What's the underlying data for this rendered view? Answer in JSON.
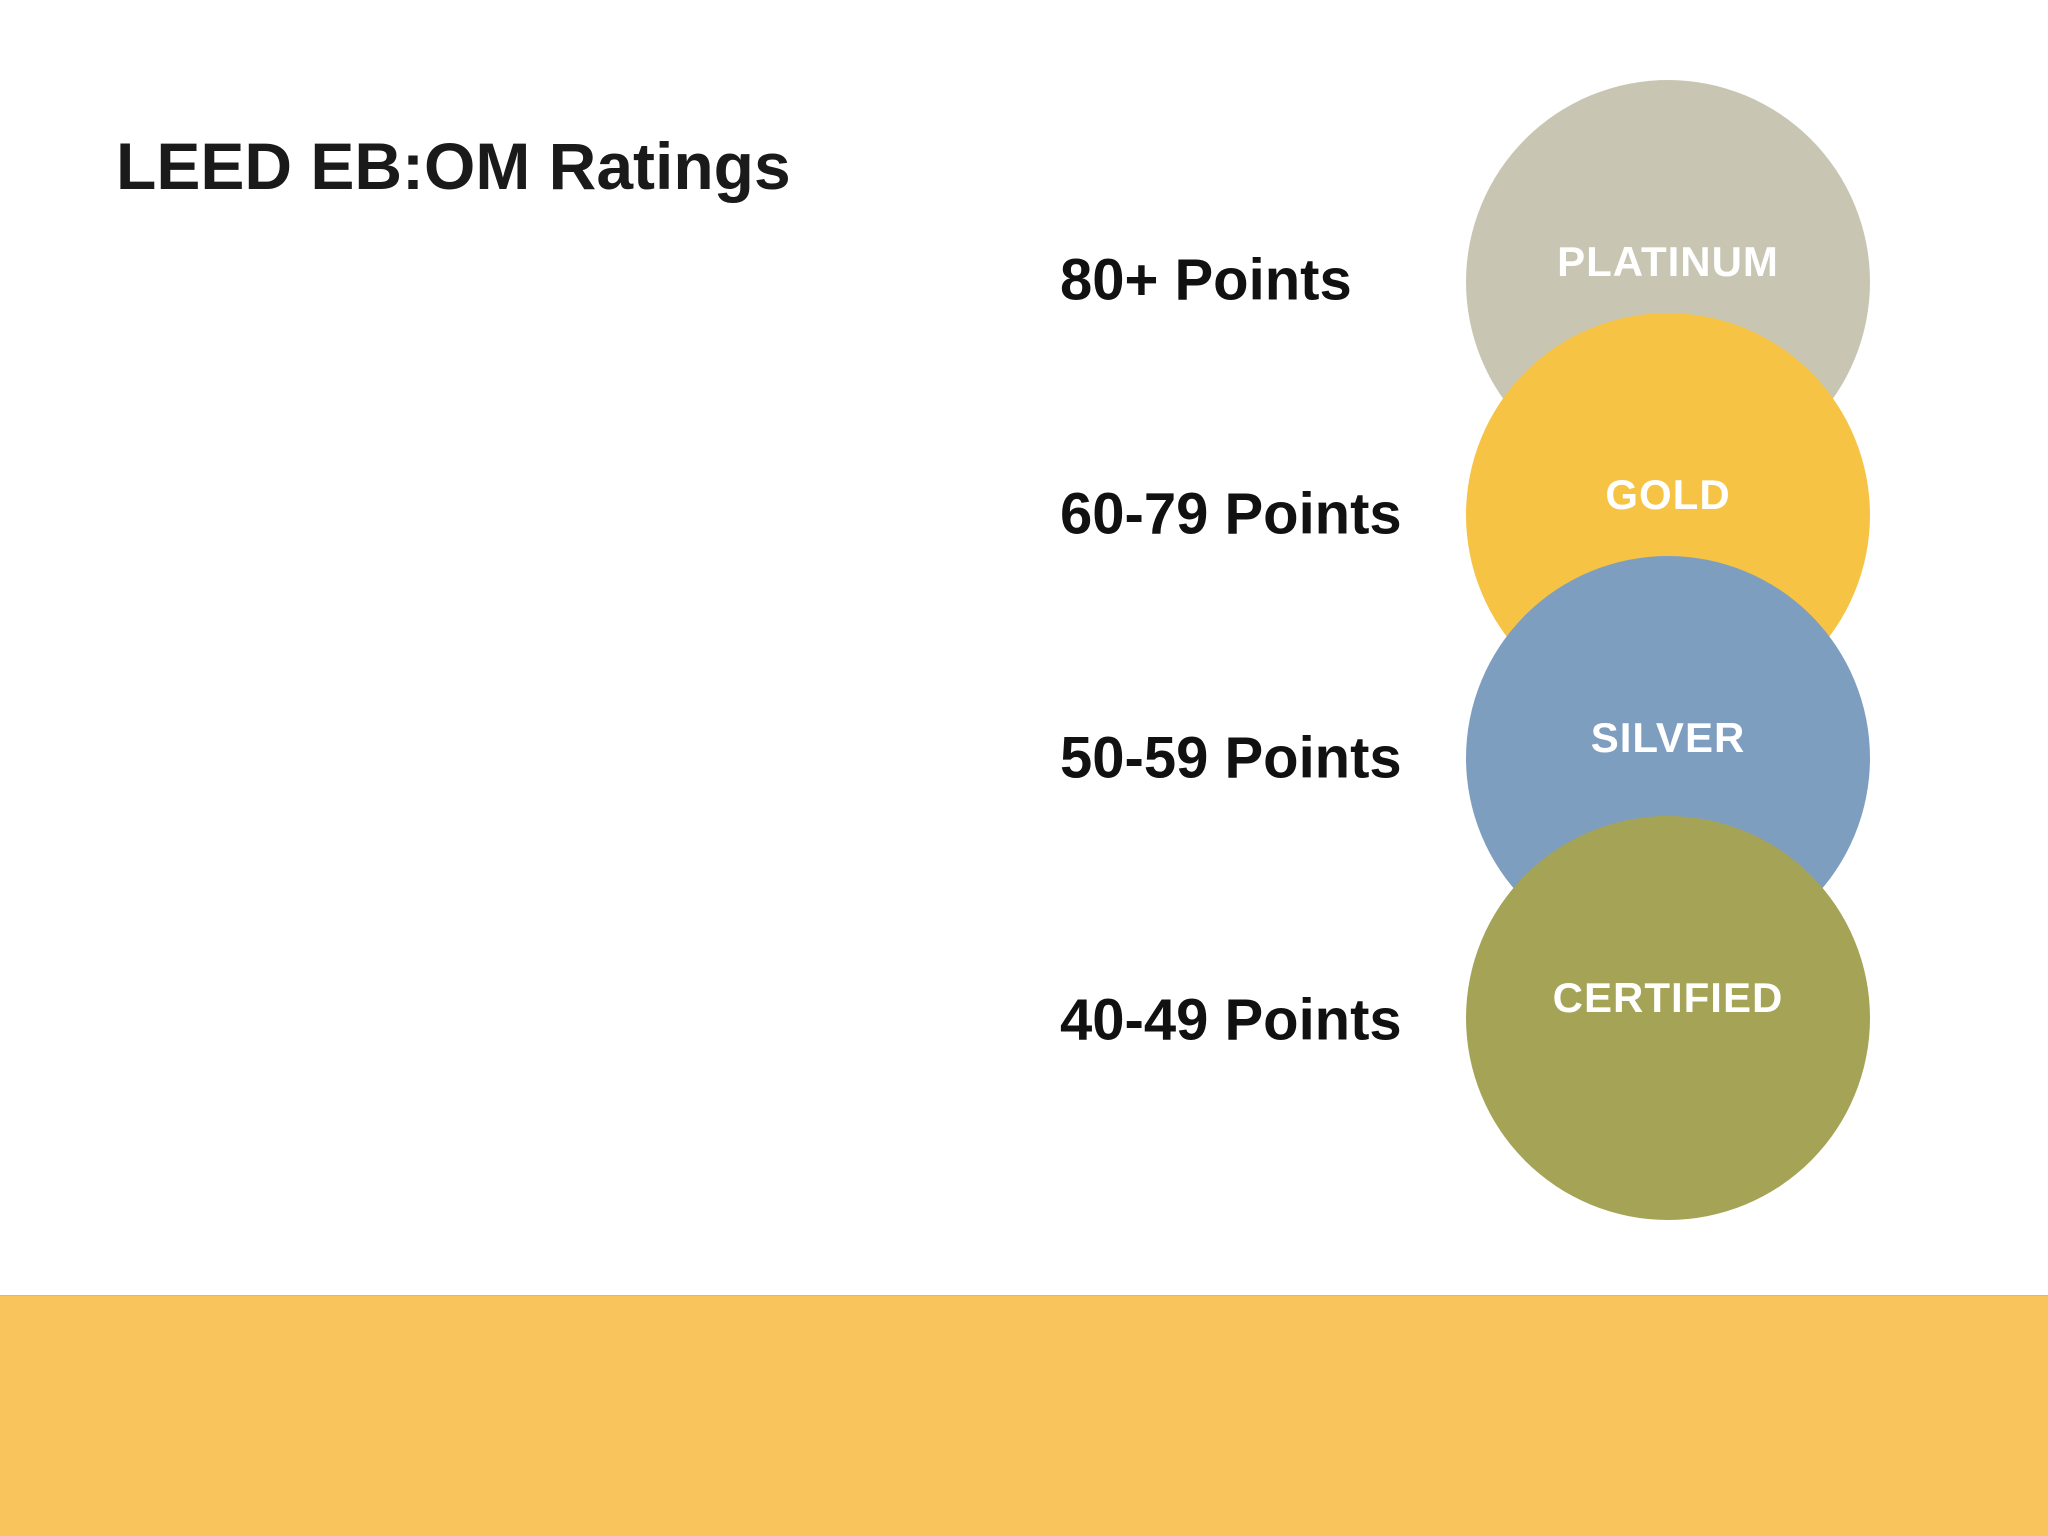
{
  "slide": {
    "title": "LEED EB:OM Ratings"
  },
  "ratings": [
    {
      "points": "80+ Points",
      "label": "PLATINUM",
      "color": "#C8C6B3"
    },
    {
      "points": "60-79 Points",
      "label": "GOLD",
      "color": "#F6C344"
    },
    {
      "points": "50-59 Points",
      "label": "SILVER",
      "color": "#7E9EC0"
    },
    {
      "points": "40-49 Points",
      "label": "CERTIFIED",
      "color": "#A5A356"
    }
  ],
  "footer": {
    "color": "#F9C45C"
  }
}
